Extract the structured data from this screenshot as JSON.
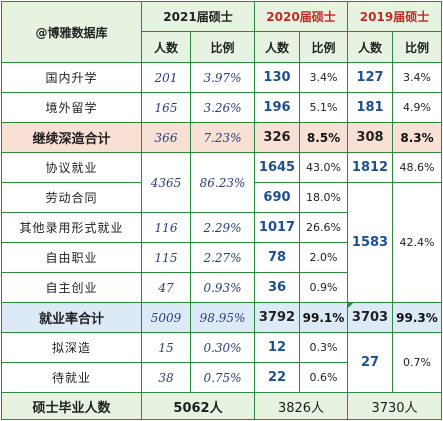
{
  "header": {
    "org": "@博雅数据库",
    "col2021": "2021届硕士",
    "col2020": "2020届硕士",
    "col2019": "2019届硕士",
    "people": "人数",
    "ratio": "比例"
  },
  "rows": {
    "domestic": {
      "label": "国内升学",
      "y21n": "201",
      "y21p": "3.97%",
      "y20n": "130",
      "y20p": "3.4%",
      "y19n": "127",
      "y19p": "3.4%"
    },
    "abroad": {
      "label": "境外留学",
      "y21n": "165",
      "y21p": "3.26%",
      "y20n": "196",
      "y20p": "5.1%",
      "y19n": "181",
      "y19p": "4.9%"
    },
    "further_total": {
      "label": "继续深造合计",
      "y21n": "366",
      "y21p": "7.23%",
      "y20n": "326",
      "y20p": "8.5%",
      "y19n": "308",
      "y19p": "8.3%"
    },
    "agreement": {
      "label": "协议就业",
      "y20n": "1645",
      "y20p": "43.0%",
      "y19n": "1812",
      "y19p": "48.6%"
    },
    "labor": {
      "label": "劳动合同",
      "y20n": "690",
      "y20p": "18.0%"
    },
    "other_forms": {
      "label": "其他录用形式就业",
      "y21n": "116",
      "y21p": "2.29%",
      "y20n": "1017",
      "y20p": "26.6%"
    },
    "freelance": {
      "label": "自由职业",
      "y21n": "115",
      "y21p": "2.27%",
      "y20n": "78",
      "y20p": "2.0%"
    },
    "startup": {
      "label": "自主创业",
      "y21n": "47",
      "y21p": "0.93%",
      "y20n": "36",
      "y20p": "0.9%"
    },
    "employment_total": {
      "label": "就业率合计",
      "y21n": "5009",
      "y21p": "98.95%",
      "y20n": "3792",
      "y20p": "99.1%",
      "y19n": "3703",
      "y19p": "99.3%"
    },
    "prep_study": {
      "label": "拟深造",
      "y21n": "15",
      "y21p": "0.30%",
      "y20n": "12",
      "y20p": "0.3%"
    },
    "pending": {
      "label": "待就业",
      "y21n": "38",
      "y21p": "0.75%",
      "y20n": "22",
      "y20p": "0.6%"
    },
    "graduates": {
      "label": "硕士毕业人数",
      "y21": "5062人",
      "y20": "3826人",
      "y19": "3730人"
    }
  },
  "merged": {
    "y21_agree_labor_n": "4365",
    "y21_agree_labor_p": "86.23%",
    "y19_labor_to_startup_n": "1583",
    "y19_labor_to_startup_p": "42.4%",
    "y19_prep_pending_n": "27",
    "y19_prep_pending_p": "0.7%"
  },
  "colors": {
    "border": "#2b8a3e",
    "header_bg": "#e6f3e0",
    "pink_row": "#f9e0d4",
    "blue_row": "#dce9f6",
    "red_title": "#c62828",
    "num_blue": "#1f4f8f"
  }
}
